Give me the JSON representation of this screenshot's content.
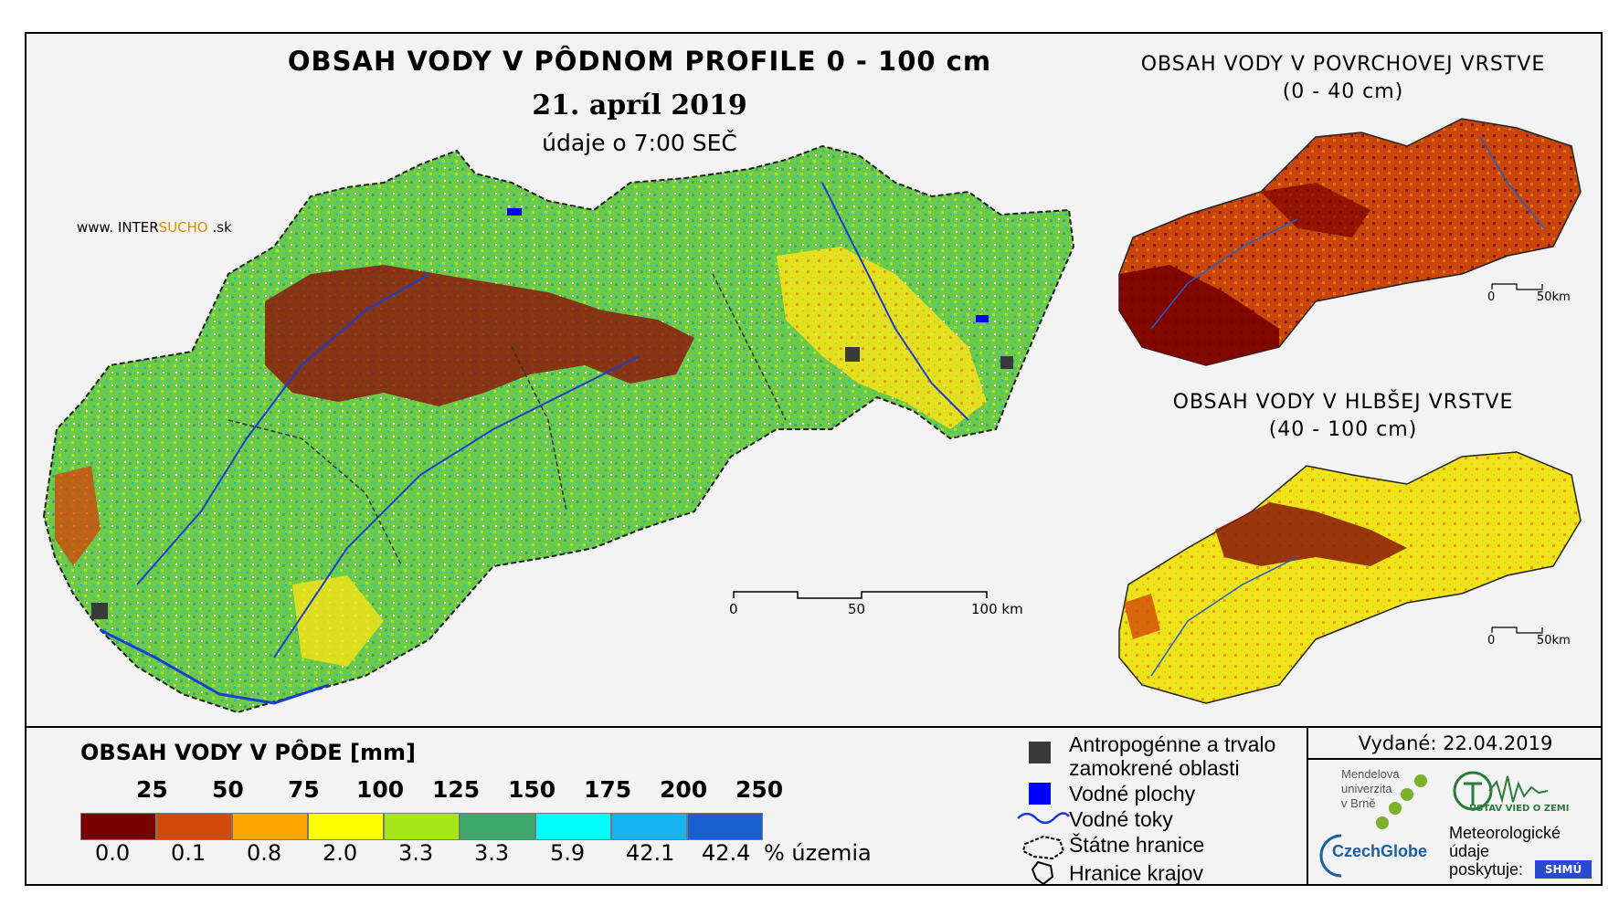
{
  "title": "OBSAH VODY V PÔDNOM PROFILE 0 - 100 cm",
  "date": "21. apríl 2019",
  "time_note": "údaje o 7:00 SEČ",
  "website": {
    "prefix": "www. INTER",
    "highlight": "SUCHO",
    "suffix": " .sk"
  },
  "main_scale": {
    "labels": [
      "0",
      "50",
      "100 km"
    ]
  },
  "inset_surface": {
    "title_line1": "OBSAH VODY V POVRCHOVEJ VRSTVE",
    "title_line2": "(0 - 40 cm)",
    "scale": [
      "0",
      "50km"
    ]
  },
  "inset_deep": {
    "title_line1": "OBSAH VODY V HLBŠEJ VRSTVE",
    "title_line2": "(40 - 100 cm)",
    "scale": [
      "0",
      "50km"
    ]
  },
  "legend": {
    "title": "OBSAH VODY V PÔDE [mm]",
    "thresholds": [
      "25",
      "50",
      "75",
      "100",
      "125",
      "150",
      "175",
      "200",
      "250"
    ],
    "colors": [
      "#7a0000",
      "#d24a0a",
      "#ffa500",
      "#ffff00",
      "#a6e61a",
      "#3ca86a",
      "#00ffff",
      "#16b4f0",
      "#1a5fd0"
    ],
    "percentages": [
      "0.0",
      "0.1",
      "0.8",
      "2.0",
      "3.3",
      "3.3",
      "5.9",
      "42.1",
      "42.4"
    ],
    "percent_unit": "% územia"
  },
  "symbols": {
    "anthropogenic_line1": "Antropogénne a trvalo",
    "anthropogenic_line2": "zamokrené oblasti",
    "water_bodies": "Vodné plochy",
    "streams": "Vodné toky",
    "state_border": "Štátne hranice",
    "region_border": "Hranice krajov"
  },
  "issued": "Vydané: 22.04.2019",
  "logos": {
    "mendel_line1": "Mendelova",
    "mendel_line2": "univerzita",
    "mendel_line3": "v Brně",
    "czechglobe": "CzechGlobe",
    "ustav": "ÚSTAV VIED O ZEMI",
    "meteo_line1": "Meteorologické",
    "meteo_line2": "údaje",
    "meteo_line3": "poskytuje:",
    "shmu": "SHMÚ"
  }
}
